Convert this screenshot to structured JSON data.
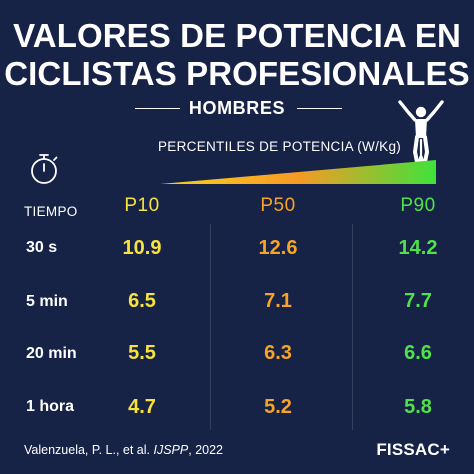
{
  "title": {
    "line1": "VALORES DE POTENCIA EN",
    "line2": "CICLISTAS PROFESIONALES"
  },
  "subtitle": "HOMBRES",
  "percentile_label": "PERCENTILES DE POTENCIA  (W/Kg)",
  "gradient_colors": [
    "#f7d21c",
    "#f79a26",
    "#3fe23a"
  ],
  "time_header": "TIEMPO",
  "columns": [
    {
      "label": "P10",
      "color": "#f7e33b"
    },
    {
      "label": "P50",
      "color": "#f7a327"
    },
    {
      "label": "P90",
      "color": "#4fe24a"
    }
  ],
  "rows": [
    {
      "time": "30 s",
      "values": [
        "10.9",
        "12.6",
        "14.2"
      ]
    },
    {
      "time": "5 min",
      "values": [
        "6.5",
        "7.1",
        "7.7"
      ]
    },
    {
      "time": "20 min",
      "values": [
        "5.5",
        "6.3",
        "6.6"
      ]
    },
    {
      "time": "1 hora",
      "values": [
        "4.7",
        "5.2",
        "5.8"
      ]
    }
  ],
  "citation": {
    "text": "Valenzuela, P. L., et al. ",
    "journal": "IJSPP",
    "year": ", 2022"
  },
  "logo": "FISSAC+",
  "icons": {
    "timer": "stopwatch-icon",
    "rider": "cyclist-icon"
  },
  "background_color": "#172247"
}
